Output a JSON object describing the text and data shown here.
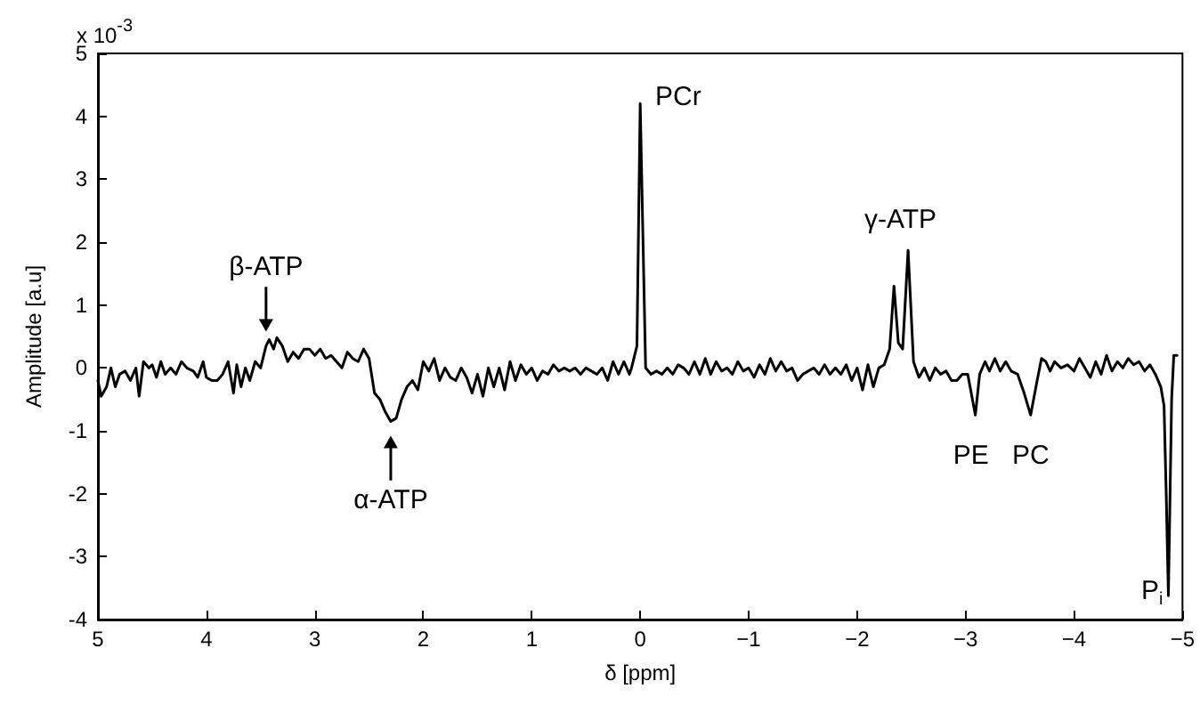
{
  "chart_data": {
    "type": "line",
    "xlabel": "δ [ppm]",
    "ylabel": "Amplitude [a.u]",
    "xlim": [
      5,
      -5
    ],
    "xticks": [
      5,
      4,
      3,
      2,
      1,
      0,
      {
        "value": -1,
        "label": "−1"
      },
      {
        "value": -2,
        "label": "−2"
      },
      {
        "value": -3,
        "label": "−3"
      },
      {
        "value": -4,
        "label": "−4"
      },
      {
        "value": -5,
        "label": "−5"
      }
    ],
    "ylim": [
      -4,
      5
    ],
    "yticks": [
      -4,
      -3,
      -2,
      -1,
      0,
      1,
      2,
      3,
      4,
      5
    ],
    "grid": false,
    "marker": "none",
    "line_style": "solid",
    "annotations": [
      "x 10$^{-3}$",
      "β-ATP",
      "α-ATP",
      "PCr",
      "γ-ATP",
      "PE",
      "PC",
      "P$_{i}$"
    ],
    "series": [
      {
        "color": "#000000",
        "x": [
          5.0,
          4.97,
          4.92,
          4.88,
          4.84,
          4.8,
          4.75,
          4.7,
          4.65,
          4.62,
          4.58,
          4.53,
          4.5,
          4.46,
          4.42,
          4.38,
          4.33,
          4.28,
          4.23,
          4.18,
          4.12,
          4.08,
          4.03,
          4.0,
          3.95,
          3.9,
          3.85,
          3.8,
          3.75,
          3.72,
          3.68,
          3.64,
          3.6,
          3.55,
          3.5,
          3.45,
          3.42,
          3.38,
          3.35,
          3.3,
          3.25,
          3.2,
          3.15,
          3.1,
          3.05,
          3.0,
          2.95,
          2.9,
          2.85,
          2.8,
          2.75,
          2.7,
          2.65,
          2.6,
          2.55,
          2.5,
          2.45,
          2.4,
          2.35,
          2.3,
          2.25,
          2.2,
          2.15,
          2.1,
          2.05,
          2.0,
          1.95,
          1.9,
          1.85,
          1.8,
          1.75,
          1.7,
          1.65,
          1.6,
          1.55,
          1.5,
          1.45,
          1.4,
          1.35,
          1.3,
          1.25,
          1.2,
          1.15,
          1.1,
          1.05,
          1.0,
          0.95,
          0.9,
          0.85,
          0.8,
          0.75,
          0.7,
          0.65,
          0.6,
          0.55,
          0.5,
          0.45,
          0.4,
          0.35,
          0.3,
          0.25,
          0.2,
          0.15,
          0.1,
          0.08,
          0.03,
          0.0,
          -0.05,
          -0.1,
          -0.15,
          -0.2,
          -0.25,
          -0.3,
          -0.35,
          -0.4,
          -0.45,
          -0.5,
          -0.55,
          -0.6,
          -0.65,
          -0.7,
          -0.75,
          -0.8,
          -0.85,
          -0.9,
          -0.95,
          -1.0,
          -1.05,
          -1.1,
          -1.15,
          -1.2,
          -1.25,
          -1.3,
          -1.35,
          -1.4,
          -1.45,
          -1.5,
          -1.55,
          -1.6,
          -1.65,
          -1.7,
          -1.75,
          -1.8,
          -1.85,
          -1.9,
          -1.95,
          -2.0,
          -2.05,
          -2.1,
          -2.15,
          -2.2,
          -2.25,
          -2.3,
          -2.34,
          -2.38,
          -2.42,
          -2.47,
          -2.52,
          -2.57,
          -2.62,
          -2.67,
          -2.72,
          -2.77,
          -2.82,
          -2.87,
          -2.92,
          -2.97,
          -3.02,
          -3.09,
          -3.13,
          -3.18,
          -3.22,
          -3.27,
          -3.32,
          -3.37,
          -3.42,
          -3.48,
          -3.54,
          -3.6,
          -3.66,
          -3.7,
          -3.74,
          -3.78,
          -3.82,
          -3.88,
          -3.94,
          -4.0,
          -4.05,
          -4.1,
          -4.15,
          -4.2,
          -4.25,
          -4.3,
          -4.35,
          -4.4,
          -4.45,
          -4.5,
          -4.55,
          -4.6,
          -4.65,
          -4.7,
          -4.75,
          -4.8,
          -4.83,
          -4.85,
          -4.87,
          -4.9,
          -4.92,
          -4.95
        ],
        "values": [
          -0.2,
          -0.45,
          -0.3,
          0.0,
          -0.3,
          -0.1,
          -0.05,
          -0.2,
          0.0,
          -0.45,
          0.1,
          0.0,
          0.05,
          -0.15,
          0.1,
          -0.1,
          0.0,
          -0.1,
          0.1,
          0.0,
          -0.05,
          -0.15,
          0.1,
          -0.15,
          -0.2,
          -0.2,
          -0.1,
          0.1,
          -0.4,
          0.05,
          -0.3,
          0.0,
          -0.2,
          0.1,
          0.0,
          0.35,
          0.45,
          0.3,
          0.48,
          0.35,
          0.1,
          0.25,
          0.15,
          0.3,
          0.3,
          0.2,
          0.3,
          0.15,
          0.2,
          0.1,
          0.0,
          0.25,
          0.15,
          0.1,
          0.3,
          0.15,
          -0.4,
          -0.5,
          -0.7,
          -0.85,
          -0.8,
          -0.5,
          -0.3,
          -0.2,
          -0.35,
          0.1,
          -0.05,
          0.15,
          -0.2,
          0.0,
          -0.15,
          -0.2,
          0.0,
          -0.15,
          -0.4,
          -0.1,
          -0.45,
          0.0,
          -0.3,
          0.0,
          -0.35,
          0.1,
          -0.2,
          0.05,
          -0.1,
          0.0,
          -0.2,
          -0.05,
          -0.1,
          0.05,
          -0.05,
          0.0,
          -0.05,
          0.0,
          -0.1,
          0.0,
          -0.05,
          -0.1,
          0.0,
          -0.2,
          0.1,
          -0.1,
          0.1,
          -0.1,
          0.0,
          0.35,
          4.2,
          0.0,
          -0.1,
          -0.05,
          -0.1,
          0.0,
          -0.1,
          0.05,
          0.0,
          -0.1,
          0.1,
          -0.1,
          0.15,
          -0.1,
          0.1,
          -0.05,
          0.0,
          -0.1,
          0.1,
          -0.05,
          0.0,
          -0.15,
          0.05,
          -0.1,
          0.15,
          -0.05,
          0.1,
          -0.05,
          0.0,
          -0.2,
          -0.1,
          -0.05,
          0.0,
          -0.1,
          0.05,
          -0.1,
          0.0,
          -0.1,
          0.05,
          -0.2,
          0.0,
          -0.35,
          0.05,
          -0.3,
          0.0,
          0.05,
          0.3,
          1.3,
          0.4,
          0.3,
          1.87,
          0.1,
          -0.15,
          0.0,
          -0.2,
          0.0,
          -0.1,
          -0.05,
          -0.2,
          -0.2,
          -0.1,
          -0.1,
          -0.75,
          -0.1,
          0.1,
          -0.05,
          0.15,
          -0.05,
          0.1,
          -0.05,
          -0.1,
          -0.4,
          -0.75,
          -0.2,
          0.15,
          0.1,
          -0.05,
          0.1,
          0.0,
          0.05,
          -0.05,
          0.15,
          0.0,
          -0.15,
          0.1,
          -0.1,
          0.2,
          -0.05,
          0.1,
          0.0,
          0.15,
          0.05,
          0.1,
          -0.05,
          0.05,
          -0.1,
          -0.3,
          -0.6,
          -2.0,
          -3.62,
          -0.5,
          0.2,
          0.2
        ]
      }
    ]
  }
}
